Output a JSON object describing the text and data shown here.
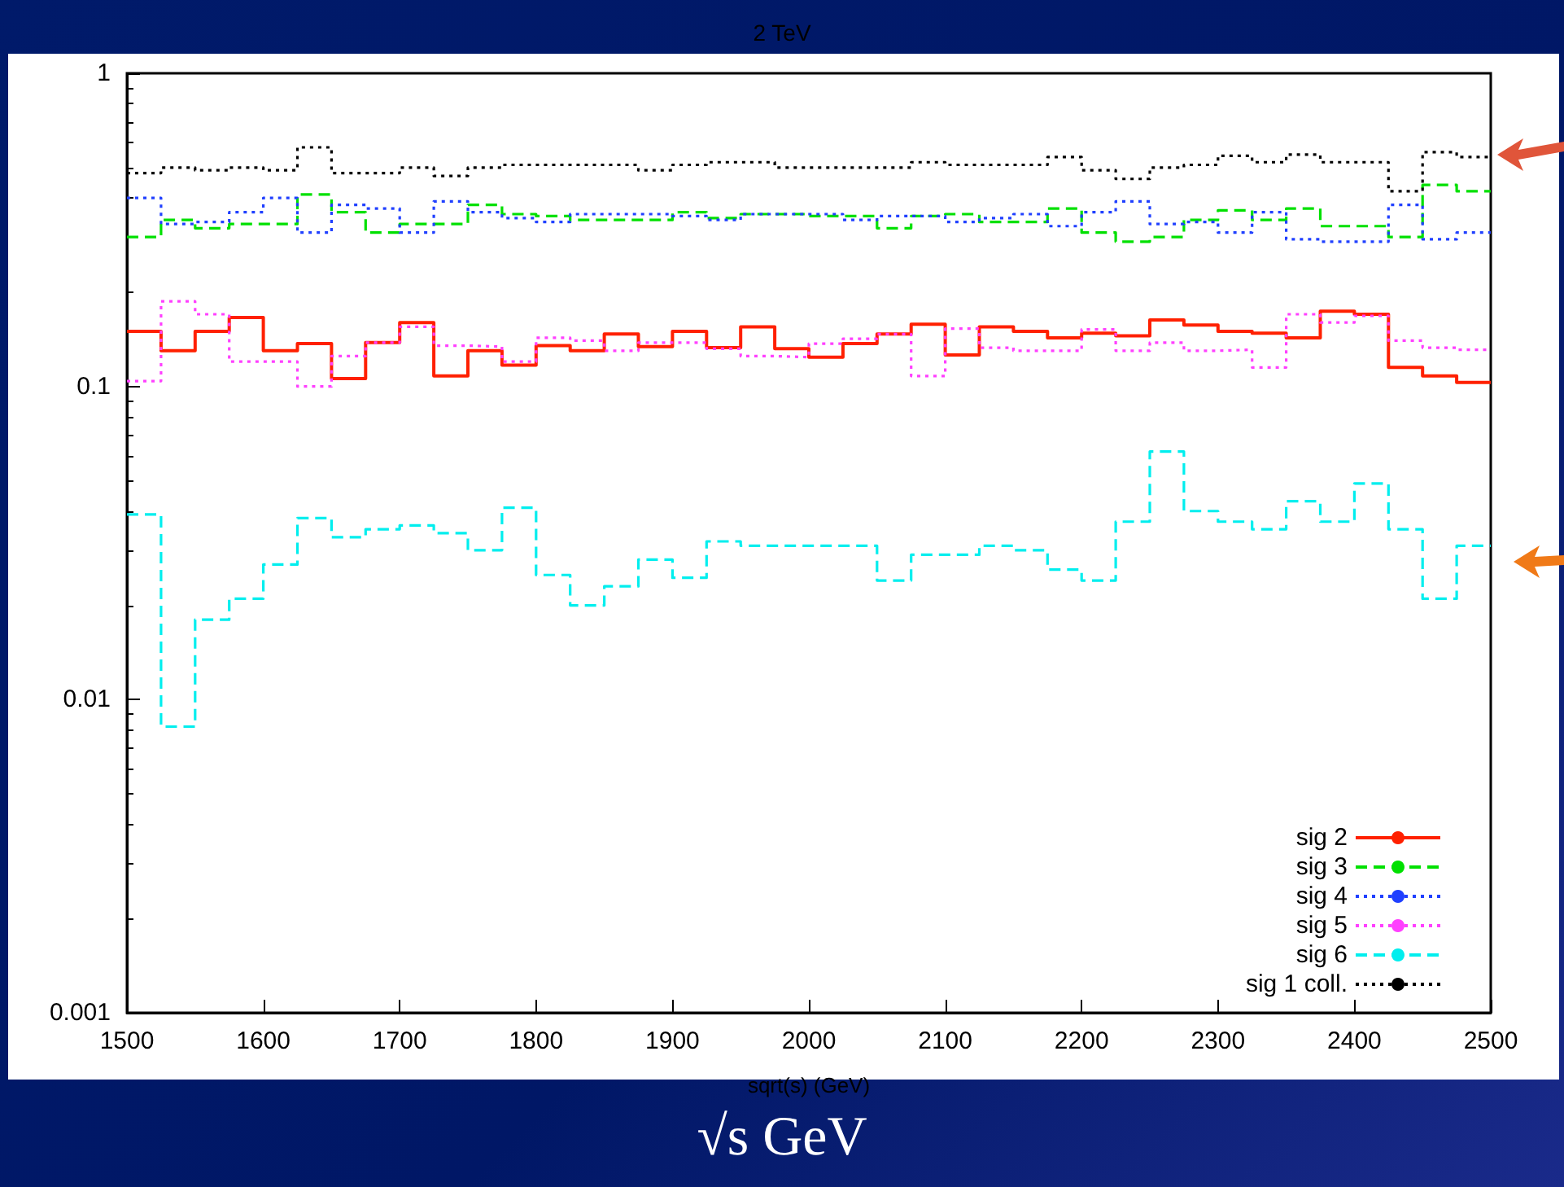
{
  "chart_data": {
    "type": "histogram",
    "title": "2 TeV",
    "xlabel": "sqrt(s) (GeV)",
    "annotations": [
      "√s GeV"
    ],
    "bins": [
      1500,
      1525,
      1550,
      1575,
      1600,
      1625,
      1650,
      1675,
      1700,
      1725,
      1750,
      1775,
      1800,
      1825,
      1850,
      1875,
      1900,
      1925,
      1950,
      1975,
      2000,
      2025,
      2050,
      2075,
      2100,
      2125,
      2150,
      2175,
      2200,
      2225,
      2250,
      2275,
      2300,
      2325,
      2350,
      2375,
      2400,
      2425,
      2450,
      2475,
      2500
    ],
    "series": [
      {
        "name": "sig 2",
        "color": "#ff2000",
        "line_style": "solid",
        "values": [
          0.15,
          0.13,
          0.15,
          0.166,
          0.13,
          0.137,
          0.106,
          0.138,
          0.16,
          0.108,
          0.13,
          0.117,
          0.135,
          0.13,
          0.147,
          0.134,
          0.15,
          0.133,
          0.155,
          0.132,
          0.124,
          0.137,
          0.147,
          0.158,
          0.126,
          0.155,
          0.15,
          0.143,
          0.148,
          0.145,
          0.163,
          0.157,
          0.15,
          0.148,
          0.143,
          0.174,
          0.17,
          0.115,
          0.108,
          0.103
        ]
      },
      {
        "name": "sig 3",
        "color": "#00e000",
        "line_style": "dashed",
        "values": [
          0.3,
          0.34,
          0.32,
          0.33,
          0.33,
          0.41,
          0.36,
          0.31,
          0.33,
          0.33,
          0.38,
          0.355,
          0.35,
          0.34,
          0.34,
          0.34,
          0.36,
          0.345,
          0.355,
          0.355,
          0.35,
          0.35,
          0.32,
          0.35,
          0.355,
          0.335,
          0.335,
          0.37,
          0.31,
          0.29,
          0.3,
          0.34,
          0.365,
          0.34,
          0.37,
          0.325,
          0.325,
          0.3,
          0.44,
          0.42
        ]
      },
      {
        "name": "sig 4",
        "color": "#2040ff",
        "line_style": "dotted",
        "values": [
          0.4,
          0.33,
          0.335,
          0.36,
          0.4,
          0.31,
          0.38,
          0.37,
          0.31,
          0.39,
          0.36,
          0.345,
          0.335,
          0.355,
          0.355,
          0.355,
          0.35,
          0.34,
          0.355,
          0.355,
          0.355,
          0.34,
          0.35,
          0.35,
          0.335,
          0.345,
          0.355,
          0.325,
          0.36,
          0.39,
          0.33,
          0.335,
          0.31,
          0.36,
          0.295,
          0.29,
          0.29,
          0.38,
          0.295,
          0.31
        ]
      },
      {
        "name": "sig 5",
        "color": "#ff40ff",
        "line_style": "dotted",
        "values": [
          0.104,
          0.187,
          0.17,
          0.12,
          0.12,
          0.1,
          0.125,
          0.138,
          0.155,
          0.135,
          0.134,
          0.12,
          0.143,
          0.14,
          0.13,
          0.138,
          0.138,
          0.132,
          0.125,
          0.124,
          0.137,
          0.142,
          0.147,
          0.108,
          0.153,
          0.133,
          0.13,
          0.13,
          0.152,
          0.13,
          0.138,
          0.13,
          0.131,
          0.115,
          0.17,
          0.16,
          0.168,
          0.14,
          0.133,
          0.131
        ]
      },
      {
        "name": "sig 6",
        "color": "#00eeee",
        "line_style": "dashed",
        "values": [
          0.039,
          0.0082,
          0.018,
          0.021,
          0.027,
          0.038,
          0.033,
          0.035,
          0.036,
          0.034,
          0.03,
          0.041,
          0.025,
          0.02,
          0.023,
          0.028,
          0.0245,
          0.032,
          0.031,
          0.031,
          0.031,
          0.031,
          0.024,
          0.029,
          0.029,
          0.031,
          0.03,
          0.026,
          0.024,
          0.037,
          0.062,
          0.04,
          0.037,
          0.035,
          0.043,
          0.037,
          0.049,
          0.035,
          0.021,
          0.031
        ]
      },
      {
        "name": "sig 1 coll.",
        "color": "#000000",
        "line_style": "dotted",
        "values": [
          0.48,
          0.5,
          0.49,
          0.5,
          0.49,
          0.58,
          0.48,
          0.48,
          0.5,
          0.47,
          0.5,
          0.51,
          0.51,
          0.51,
          0.51,
          0.49,
          0.51,
          0.52,
          0.52,
          0.5,
          0.5,
          0.5,
          0.5,
          0.52,
          0.51,
          0.51,
          0.51,
          0.54,
          0.49,
          0.46,
          0.5,
          0.51,
          0.545,
          0.52,
          0.55,
          0.52,
          0.52,
          0.42,
          0.56,
          0.54
        ]
      }
    ],
    "xlim": [
      1500,
      2500
    ],
    "xticks": [
      1500,
      1600,
      1700,
      1800,
      1900,
      2000,
      2100,
      2200,
      2300,
      2400,
      2500
    ],
    "ylim": [
      0.001,
      1
    ],
    "yticks": [
      0.001,
      0.01,
      0.1,
      1
    ],
    "log": "y",
    "legend": "bottom right",
    "grid": false
  }
}
